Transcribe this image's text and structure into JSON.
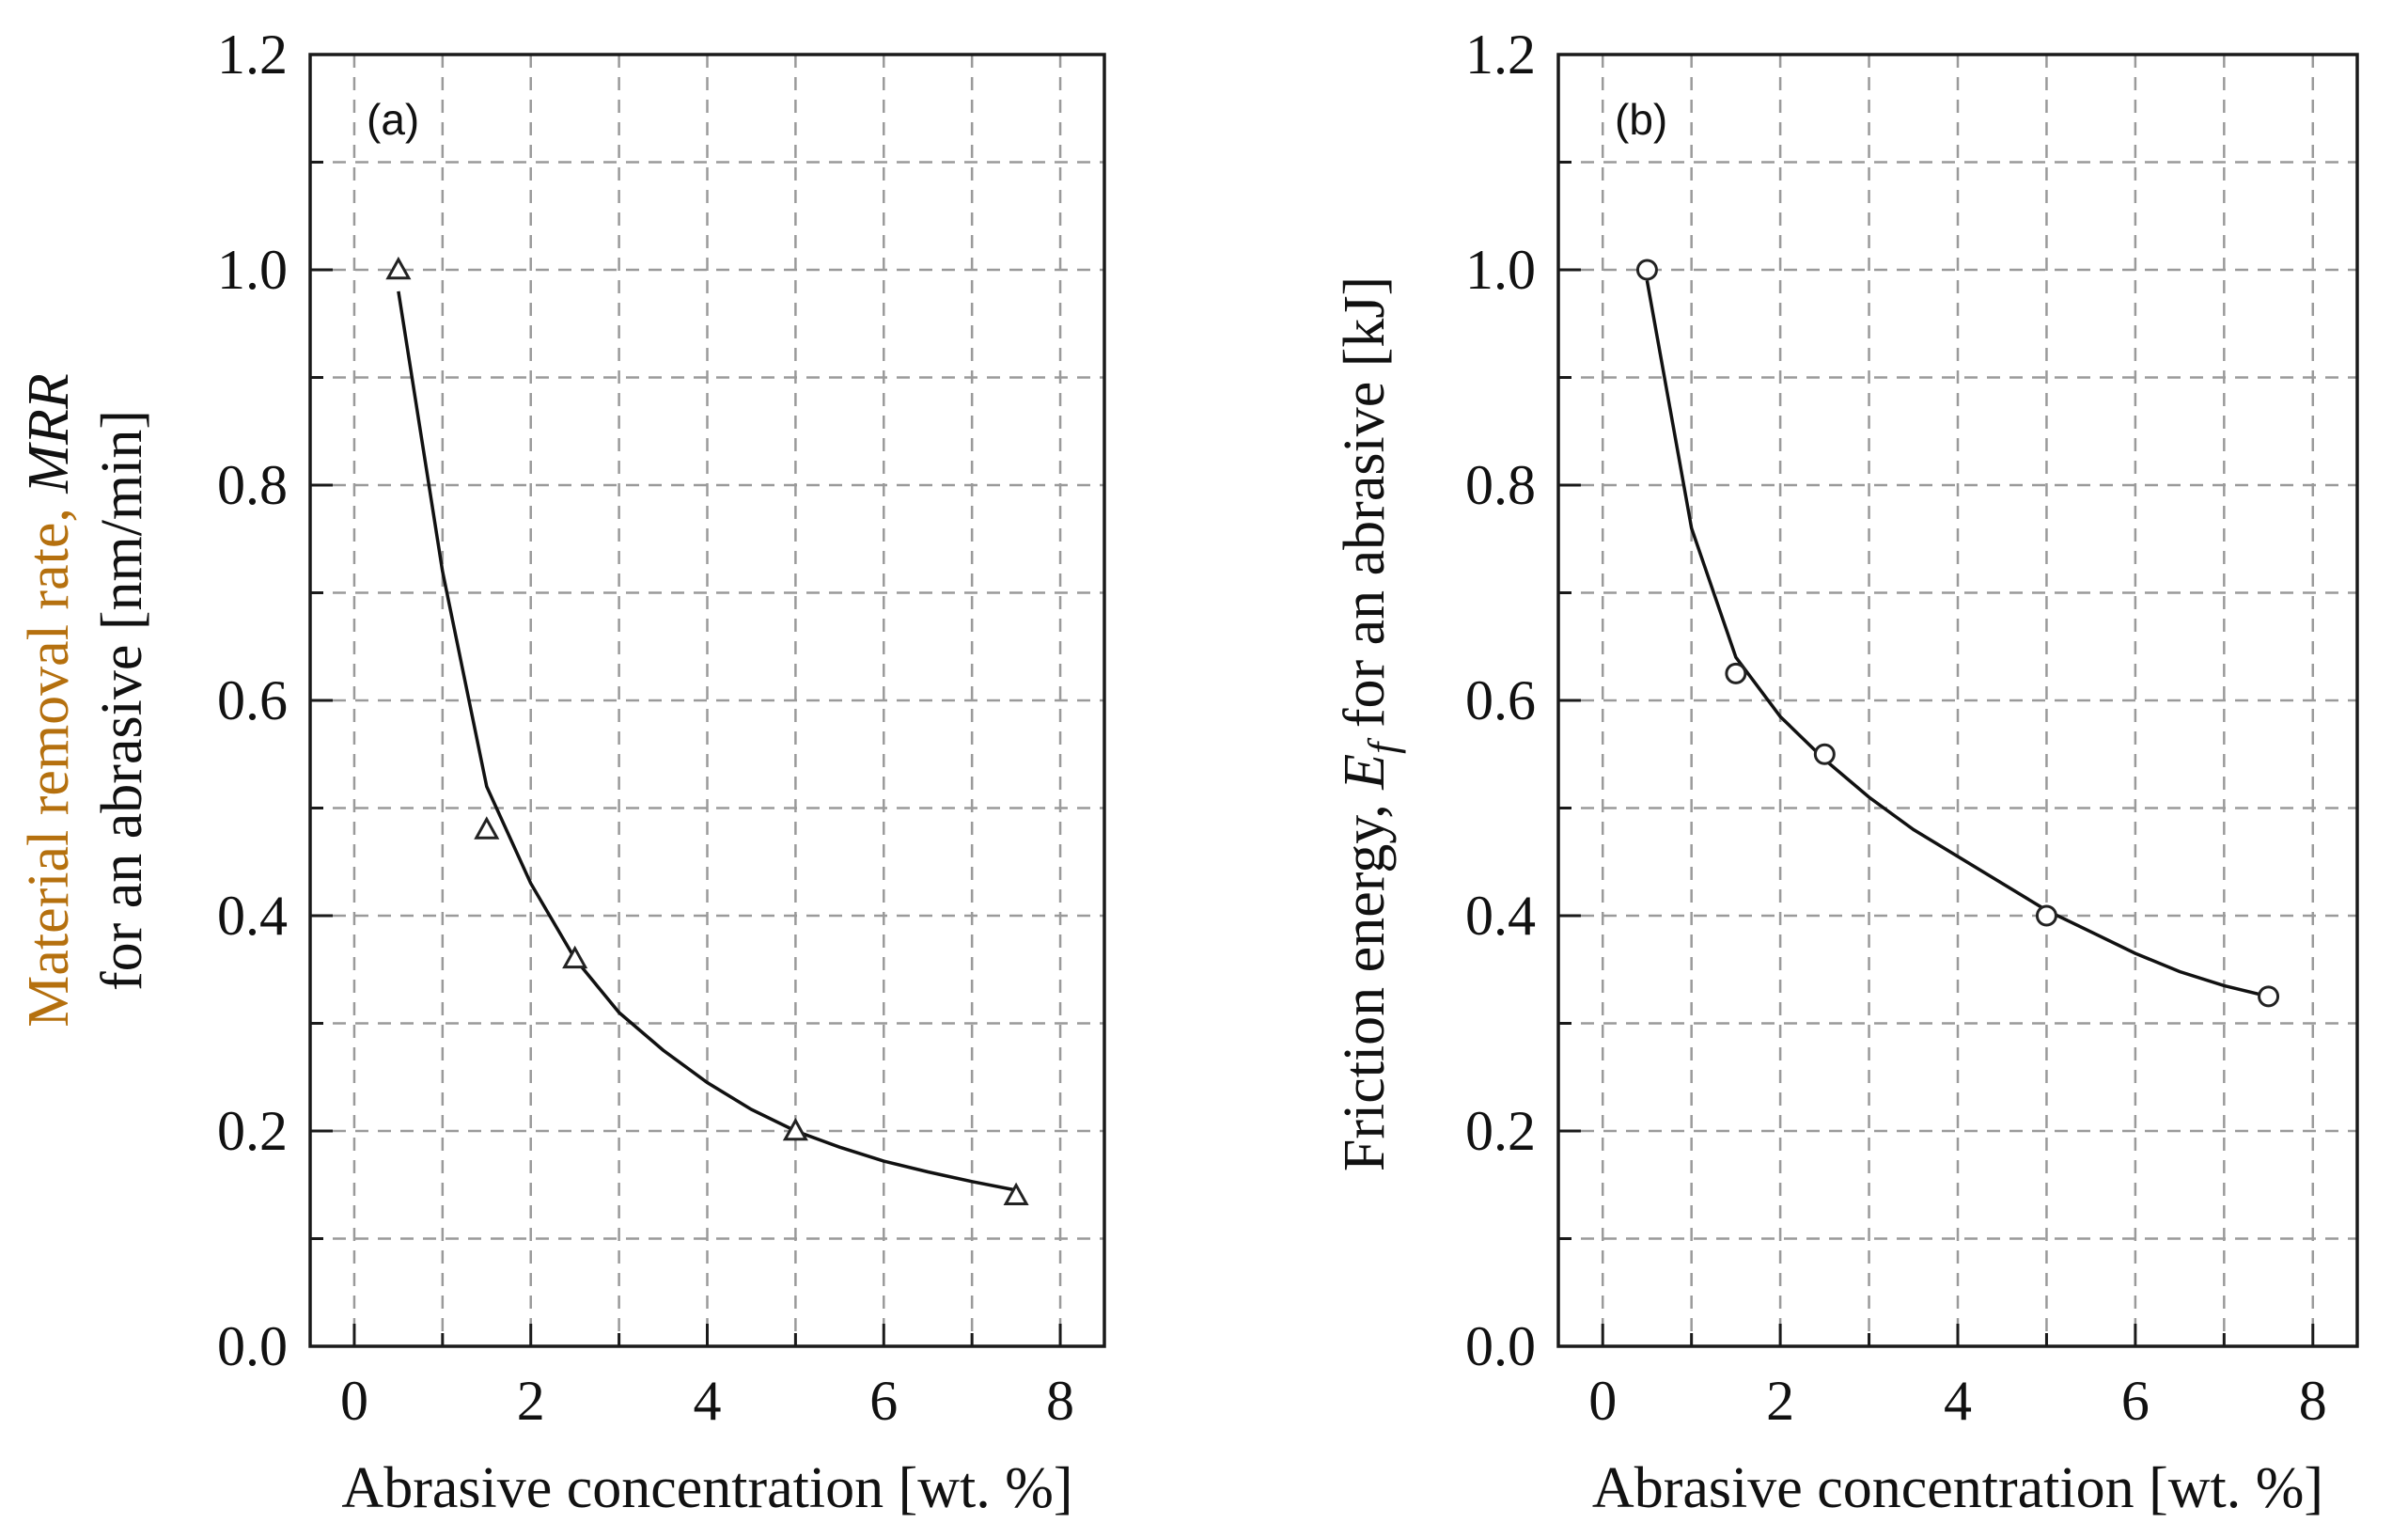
{
  "chart_data": [
    {
      "type": "scatter",
      "panel": "(a)",
      "xlabel": "Abrasive concentration [wt. %]",
      "ylabel_line1_prefix": "Material removal rate, ",
      "ylabel_line1_italic": "MRR",
      "ylabel_line2": "for an abrasive [nm/min]",
      "xlim": [
        -0.5,
        8.5
      ],
      "ylim": [
        0.0,
        1.2
      ],
      "xticks": [
        "0",
        "2",
        "4",
        "6",
        "8"
      ],
      "yticks": [
        "0.0",
        "0.2",
        "0.4",
        "0.6",
        "0.8",
        "1.0",
        "1.2"
      ],
      "marker": "triangle",
      "grid": true,
      "series": [
        {
          "name": "MRR",
          "x": [
            0.5,
            1.5,
            2.5,
            5.0,
            7.5
          ],
          "y": [
            1.0,
            0.48,
            0.36,
            0.2,
            0.14
          ]
        }
      ],
      "fit": {
        "x": [
          0.5,
          1.0,
          1.5,
          2.0,
          2.5,
          3.0,
          3.5,
          4.0,
          4.5,
          5.0,
          5.5,
          6.0,
          6.5,
          7.0,
          7.5
        ],
        "y": [
          0.98,
          0.72,
          0.52,
          0.43,
          0.36,
          0.31,
          0.275,
          0.245,
          0.22,
          0.2,
          0.185,
          0.172,
          0.162,
          0.153,
          0.145
        ]
      }
    },
    {
      "type": "scatter",
      "panel": "(b)",
      "xlabel": "Abrasive concentration [wt. %]",
      "ylabel_prefix": "Friction energy, ",
      "ylabel_symbol": "E",
      "ylabel_sub": "f",
      "ylabel_suffix": " for an abrasive [kJ]",
      "xlim": [
        -0.5,
        8.5
      ],
      "ylim": [
        0.0,
        1.2
      ],
      "xticks": [
        "0",
        "2",
        "4",
        "6",
        "8"
      ],
      "yticks": [
        "0.0",
        "0.2",
        "0.4",
        "0.6",
        "0.8",
        "1.0",
        "1.2"
      ],
      "marker": "circle",
      "grid": true,
      "series": [
        {
          "name": "Friction energy",
          "x": [
            0.5,
            1.5,
            2.5,
            5.0,
            7.5
          ],
          "y": [
            1.0,
            0.625,
            0.55,
            0.4,
            0.325
          ]
        }
      ],
      "fit": {
        "x": [
          0.5,
          1.0,
          1.5,
          2.0,
          2.5,
          3.0,
          3.5,
          4.0,
          4.5,
          5.0,
          5.5,
          6.0,
          6.5,
          7.0,
          7.5
        ],
        "y": [
          0.99,
          0.76,
          0.64,
          0.585,
          0.545,
          0.51,
          0.48,
          0.455,
          0.43,
          0.405,
          0.385,
          0.365,
          0.348,
          0.335,
          0.325
        ]
      }
    }
  ]
}
